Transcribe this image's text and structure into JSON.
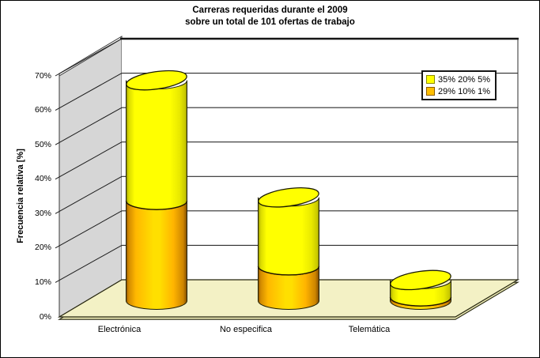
{
  "chart_data": {
    "type": "bar",
    "subtype": "3d-stacked-cylinder",
    "title_line1": "Carreras requeridas durante el 2009",
    "title_line2": "sobre un total de 101 ofertas de trabajo",
    "ylabel": "Frecuencia relativa [%]",
    "categories": [
      "Electrónica",
      "No especifica",
      "Telemática"
    ],
    "series": [
      {
        "name": "29% 10% 1%",
        "color": "#ffbf00",
        "values": [
          29,
          10,
          1
        ]
      },
      {
        "name": "35% 20% 5%",
        "color": "#ffff00",
        "values": [
          35,
          20,
          5
        ]
      }
    ],
    "stacked": true,
    "ylim": [
      0,
      70
    ],
    "yticks": [
      "0%",
      "10%",
      "20%",
      "30%",
      "40%",
      "50%",
      "60%",
      "70%"
    ],
    "grid": true,
    "legend_position": "top-right"
  },
  "legend": {
    "items": [
      {
        "label": "35% 20% 5%",
        "color": "#ffff00",
        "border": "#8a8a00"
      },
      {
        "label": "29% 10% 1%",
        "color": "#ffbf00",
        "border": "#8a5a00"
      }
    ]
  },
  "palette": {
    "bar_yellow": "#ffff00",
    "bar_orange": "#ffbf00",
    "floor": "#f3f1c5",
    "left_wall": "#d6d6d6",
    "back_wall": "#ffffff"
  }
}
